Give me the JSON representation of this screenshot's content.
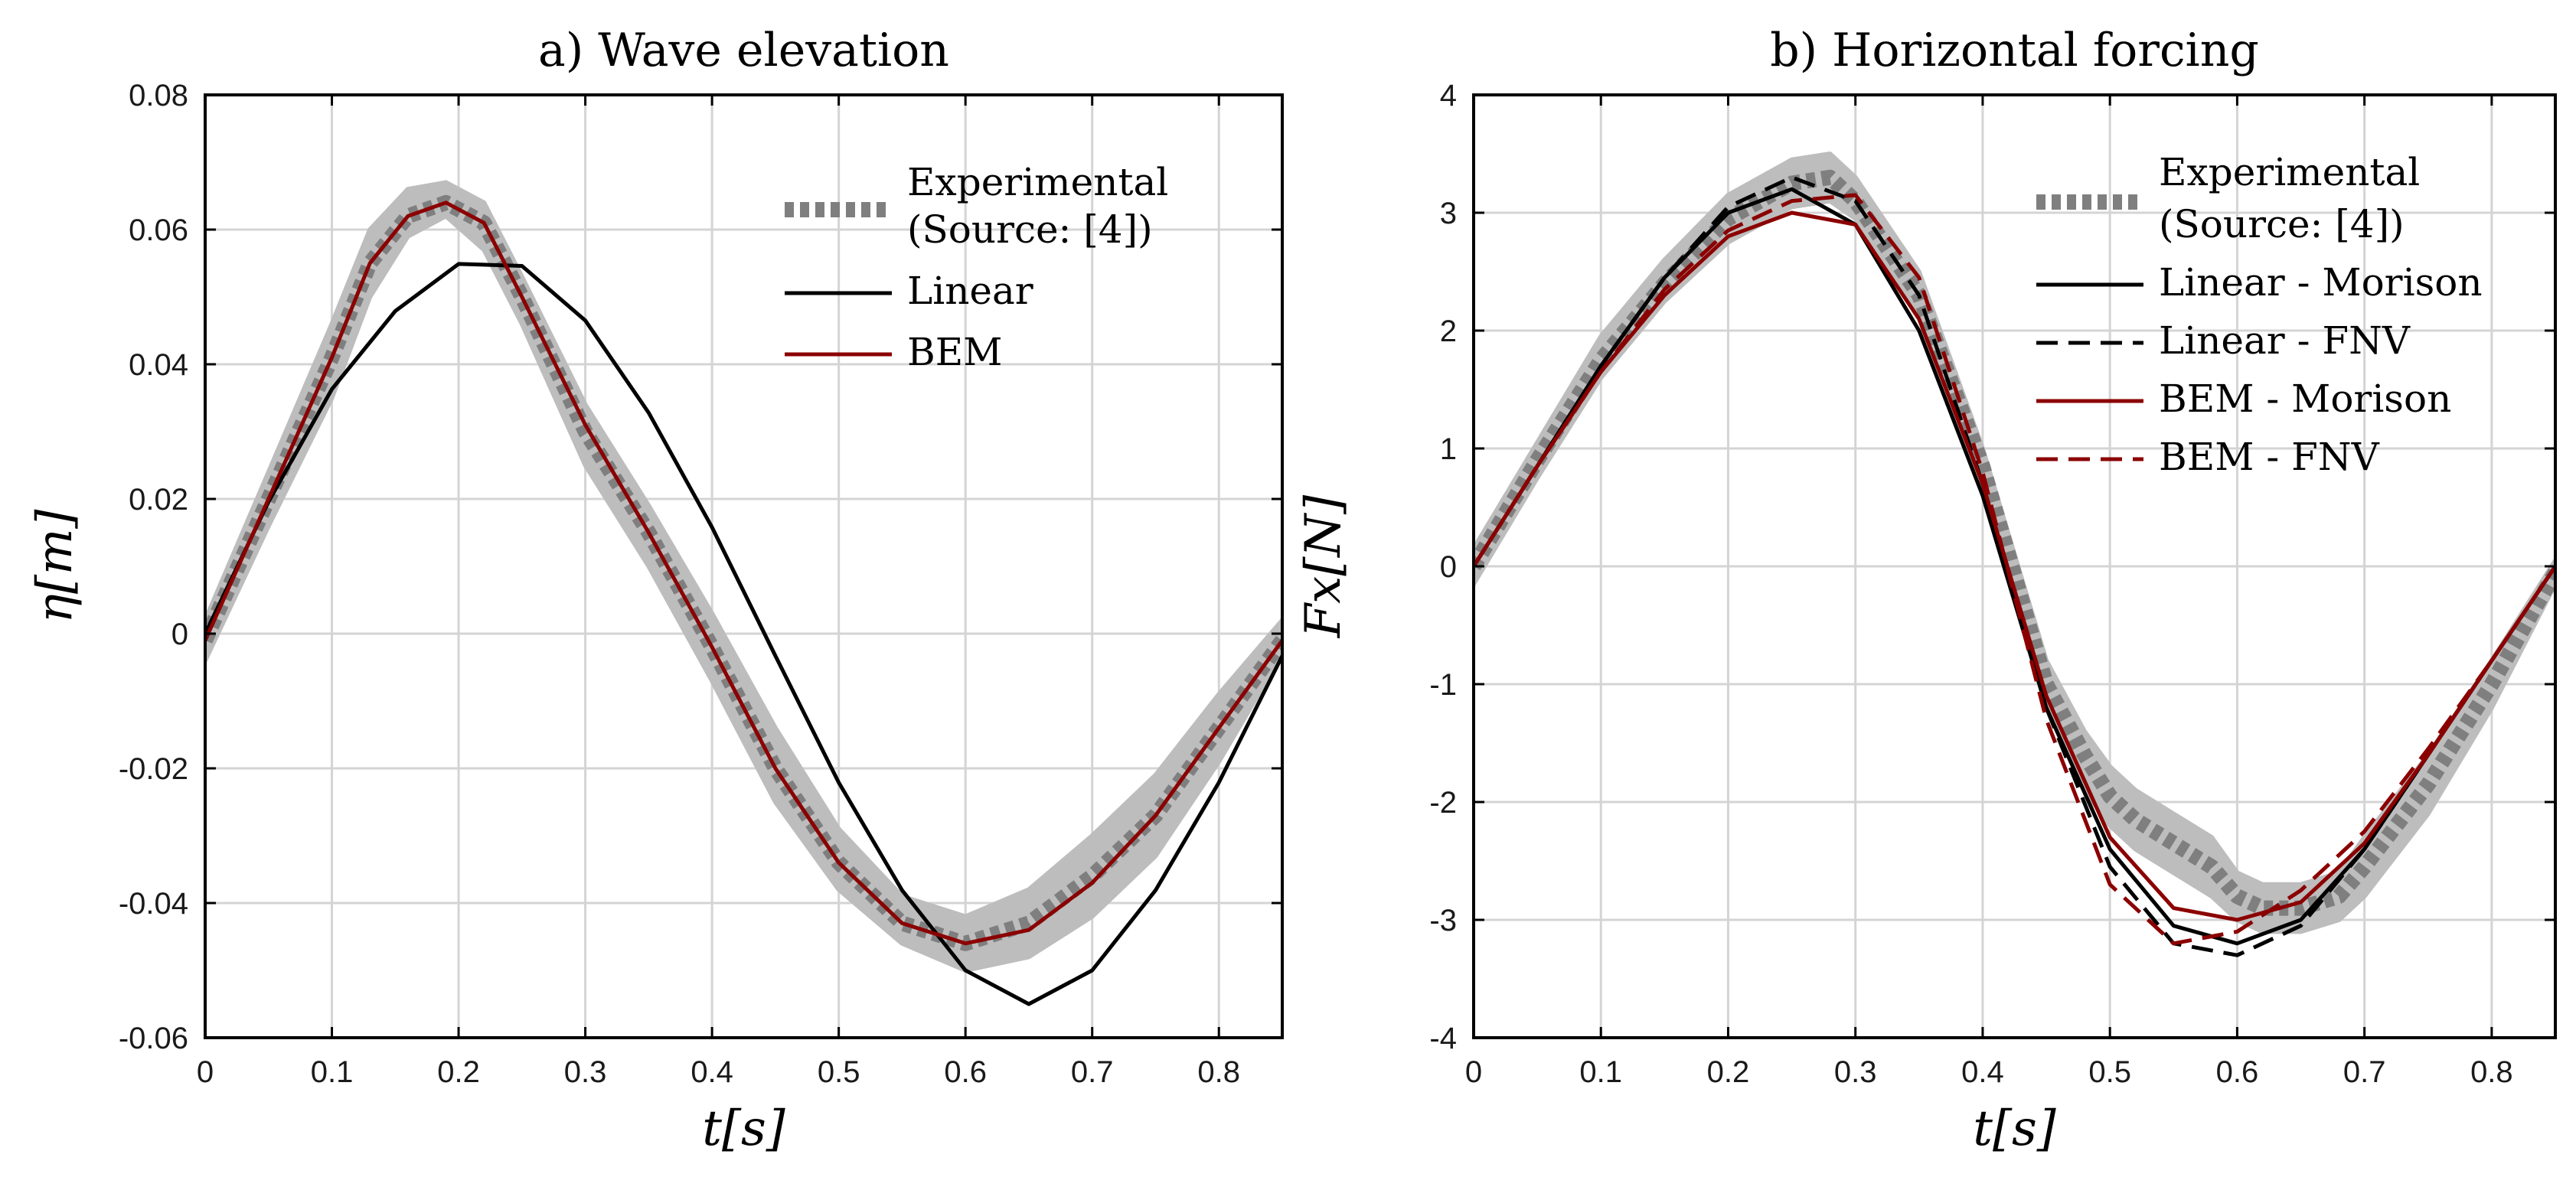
{
  "chart_data": [
    {
      "type": "line",
      "panel": "a",
      "title": "a) Wave elevation",
      "xlabel": "t[s]",
      "ylabel": "η[m]",
      "xlim": [
        0,
        0.85
      ],
      "ylim": [
        -0.06,
        0.08
      ],
      "xticks": [
        0,
        0.1,
        0.2,
        0.3,
        0.4,
        0.5,
        0.6,
        0.7,
        0.8
      ],
      "yticks": [
        -0.06,
        -0.04,
        -0.02,
        0,
        0.02,
        0.04,
        0.06,
        0.08
      ],
      "xtick_labels": [
        "0",
        "0.1",
        "0.2",
        "0.3",
        "0.4",
        "0.5",
        "0.6",
        "0.7",
        "0.8"
      ],
      "ytick_labels": [
        "-0.06",
        "-0.04",
        "-0.02",
        "0",
        "0.02",
        "0.04",
        "0.06",
        "0.08"
      ],
      "grid": true,
      "legend_position": "top-right",
      "band": {
        "name": "Experimental range",
        "color": "#bdbdbd",
        "x": [
          0,
          0.05,
          0.1,
          0.13,
          0.16,
          0.19,
          0.22,
          0.25,
          0.3,
          0.35,
          0.4,
          0.45,
          0.5,
          0.55,
          0.6,
          0.65,
          0.7,
          0.75,
          0.8,
          0.85
        ],
        "upper": [
          0.002,
          0.024,
          0.046,
          0.06,
          0.066,
          0.067,
          0.064,
          0.053,
          0.034,
          0.019,
          0.003,
          -0.014,
          -0.029,
          -0.039,
          -0.042,
          -0.038,
          -0.03,
          -0.021,
          -0.009,
          0.002
        ],
        "lower": [
          -0.004,
          0.016,
          0.035,
          0.05,
          0.059,
          0.062,
          0.057,
          0.046,
          0.025,
          0.01,
          -0.007,
          -0.025,
          -0.038,
          -0.046,
          -0.05,
          -0.048,
          -0.042,
          -0.033,
          -0.019,
          -0.003
        ]
      },
      "series": [
        {
          "name": "Experimental",
          "name_line2": "(Source:  [4])",
          "color": "#7f7f7f",
          "style": "dotted",
          "x": [
            0,
            0.05,
            0.1,
            0.13,
            0.16,
            0.19,
            0.22,
            0.25,
            0.3,
            0.35,
            0.4,
            0.45,
            0.5,
            0.55,
            0.6,
            0.65,
            0.7,
            0.75,
            0.8,
            0.85
          ],
          "y": [
            -0.001,
            0.02,
            0.041,
            0.055,
            0.062,
            0.064,
            0.061,
            0.05,
            0.03,
            0.015,
            -0.002,
            -0.02,
            -0.034,
            -0.043,
            -0.046,
            -0.043,
            -0.036,
            -0.027,
            -0.014,
            -0.001
          ]
        },
        {
          "name": "Linear",
          "color": "#000000",
          "style": "solid",
          "x": [
            0,
            0.05,
            0.1,
            0.15,
            0.2,
            0.25,
            0.3,
            0.35,
            0.4,
            0.45,
            0.5,
            0.55,
            0.6,
            0.65,
            0.7,
            0.75,
            0.8,
            0.85
          ],
          "y": [
            0,
            0.0196,
            0.0363,
            0.0479,
            0.0549,
            0.0546,
            0.0465,
            0.0328,
            0.0158,
            -0.0033,
            -0.0221,
            -0.0381,
            -0.05,
            -0.055,
            -0.05,
            -0.0381,
            -0.0221,
            -0.0033
          ]
        },
        {
          "name": "BEM",
          "color": "#8b0000",
          "style": "solid",
          "x": [
            0,
            0.05,
            0.1,
            0.13,
            0.16,
            0.19,
            0.22,
            0.25,
            0.3,
            0.35,
            0.4,
            0.45,
            0.5,
            0.55,
            0.6,
            0.65,
            0.7,
            0.75,
            0.8,
            0.85
          ],
          "y": [
            -0.001,
            0.02,
            0.041,
            0.055,
            0.062,
            0.064,
            0.061,
            0.05,
            0.031,
            0.015,
            -0.002,
            -0.02,
            -0.034,
            -0.043,
            -0.046,
            -0.044,
            -0.037,
            -0.027,
            -0.014,
            -0.001
          ]
        }
      ]
    },
    {
      "type": "line",
      "panel": "b",
      "title": "b) Horizontal forcing",
      "xlabel": "t[s]",
      "ylabel": "Fx[N]",
      "xlim": [
        0,
        0.85
      ],
      "ylim": [
        -4,
        4
      ],
      "xticks": [
        0,
        0.1,
        0.2,
        0.3,
        0.4,
        0.5,
        0.6,
        0.7,
        0.8
      ],
      "yticks": [
        -4,
        -3,
        -2,
        -1,
        0,
        1,
        2,
        3,
        4
      ],
      "xtick_labels": [
        "0",
        "0.1",
        "0.2",
        "0.3",
        "0.4",
        "0.5",
        "0.6",
        "0.7",
        "0.8"
      ],
      "ytick_labels": [
        "-4",
        "-3",
        "-2",
        "-1",
        "0",
        "1",
        "2",
        "3",
        "4"
      ],
      "grid": true,
      "legend_position": "top-right",
      "band": {
        "name": "Experimental range",
        "color": "#bdbdbd",
        "x": [
          0,
          0.05,
          0.1,
          0.15,
          0.2,
          0.25,
          0.28,
          0.3,
          0.35,
          0.4,
          0.45,
          0.48,
          0.5,
          0.52,
          0.55,
          0.58,
          0.6,
          0.62,
          0.65,
          0.68,
          0.7,
          0.75,
          0.8,
          0.85
        ],
        "upper": [
          0.15,
          1.05,
          1.95,
          2.6,
          3.15,
          3.45,
          3.5,
          3.3,
          2.5,
          1.0,
          -0.8,
          -1.4,
          -1.7,
          -1.9,
          -2.1,
          -2.3,
          -2.6,
          -2.7,
          -2.7,
          -2.6,
          -2.3,
          -1.6,
          -0.8,
          0.05
        ],
        "lower": [
          -0.15,
          0.75,
          1.6,
          2.25,
          2.75,
          3.05,
          3.1,
          2.95,
          2.1,
          0.7,
          -1.2,
          -1.9,
          -2.2,
          -2.4,
          -2.6,
          -2.8,
          -3.0,
          -3.1,
          -3.1,
          -3.0,
          -2.8,
          -2.1,
          -1.2,
          -0.15
        ]
      },
      "series": [
        {
          "name": "Experimental",
          "name_line2": "(Source:  [4])",
          "color": "#7f7f7f",
          "style": "dotted",
          "x": [
            0,
            0.05,
            0.1,
            0.15,
            0.2,
            0.25,
            0.28,
            0.3,
            0.35,
            0.4,
            0.45,
            0.48,
            0.5,
            0.52,
            0.55,
            0.58,
            0.6,
            0.62,
            0.65,
            0.68,
            0.7,
            0.75,
            0.8,
            0.85
          ],
          "y": [
            0,
            0.9,
            1.75,
            2.4,
            2.95,
            3.25,
            3.3,
            3.1,
            2.3,
            0.85,
            -1.0,
            -1.6,
            -1.95,
            -2.15,
            -2.35,
            -2.55,
            -2.8,
            -2.9,
            -2.9,
            -2.8,
            -2.55,
            -1.85,
            -1.0,
            -0.05
          ]
        },
        {
          "name": "Linear - Morison",
          "color": "#000000",
          "style": "solid",
          "x": [
            0,
            0.05,
            0.1,
            0.15,
            0.2,
            0.25,
            0.3,
            0.35,
            0.4,
            0.45,
            0.5,
            0.55,
            0.6,
            0.65,
            0.7,
            0.75,
            0.8,
            0.85
          ],
          "y": [
            0,
            0.85,
            1.7,
            2.45,
            3.0,
            3.2,
            2.9,
            2.0,
            0.6,
            -1.2,
            -2.4,
            -3.05,
            -3.2,
            -3.0,
            -2.4,
            -1.6,
            -0.8,
            0
          ]
        },
        {
          "name": "Linear - FNV",
          "color": "#000000",
          "style": "dashed",
          "x": [
            0,
            0.05,
            0.1,
            0.15,
            0.2,
            0.25,
            0.3,
            0.35,
            0.4,
            0.45,
            0.5,
            0.55,
            0.6,
            0.65,
            0.7,
            0.75,
            0.8,
            0.85
          ],
          "y": [
            0,
            0.85,
            1.7,
            2.45,
            3.05,
            3.3,
            3.1,
            2.3,
            0.7,
            -1.2,
            -2.55,
            -3.2,
            -3.3,
            -3.05,
            -2.4,
            -1.6,
            -0.8,
            0
          ]
        },
        {
          "name": "BEM - Morison",
          "color": "#8b0000",
          "style": "solid",
          "x": [
            0,
            0.05,
            0.1,
            0.15,
            0.2,
            0.25,
            0.3,
            0.35,
            0.4,
            0.45,
            0.5,
            0.55,
            0.6,
            0.65,
            0.7,
            0.75,
            0.8,
            0.85
          ],
          "y": [
            0,
            0.85,
            1.65,
            2.3,
            2.8,
            3.0,
            2.9,
            2.1,
            0.7,
            -1.1,
            -2.3,
            -2.9,
            -3.0,
            -2.85,
            -2.35,
            -1.6,
            -0.8,
            0
          ]
        },
        {
          "name": "BEM - FNV",
          "color": "#8b0000",
          "style": "dashed",
          "x": [
            0,
            0.05,
            0.1,
            0.15,
            0.2,
            0.25,
            0.3,
            0.35,
            0.4,
            0.45,
            0.5,
            0.55,
            0.6,
            0.65,
            0.7,
            0.75,
            0.8,
            0.85
          ],
          "y": [
            0,
            0.85,
            1.65,
            2.35,
            2.85,
            3.1,
            3.15,
            2.45,
            0.8,
            -1.3,
            -2.7,
            -3.2,
            -3.1,
            -2.75,
            -2.25,
            -1.55,
            -0.8,
            0
          ]
        }
      ]
    }
  ]
}
